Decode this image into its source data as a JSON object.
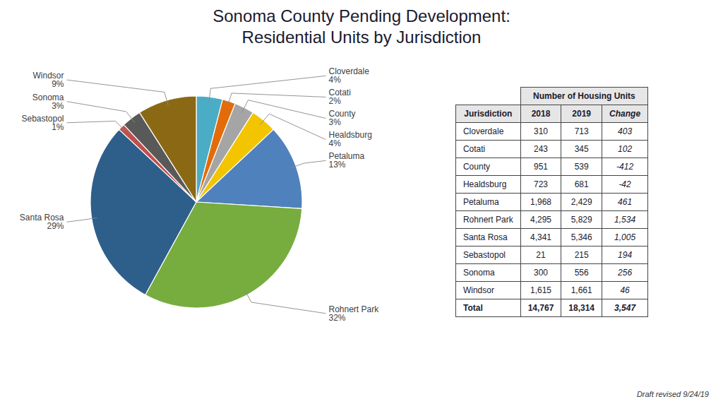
{
  "chart_data": [
    {
      "type": "pie",
      "title": "Sonoma County Pending Development:\nResidential Units by Jurisdiction",
      "categories": [
        "Cloverdale",
        "Cotati",
        "County",
        "Healdsburg",
        "Petaluma",
        "Rohnert Park",
        "Santa Rosa",
        "Sebastopol",
        "Sonoma",
        "Windsor"
      ],
      "values": [
        4,
        2,
        3,
        4,
        13,
        32,
        29,
        1,
        3,
        9
      ],
      "value_labels": [
        "4%",
        "2%",
        "3%",
        "4%",
        "13%",
        "32%",
        "29%",
        "1%",
        "3%",
        "9%"
      ],
      "colors": [
        "#4BACC6",
        "#E36C0A",
        "#A5A5A5",
        "#F2C500",
        "#4F81BD",
        "#77AC3F",
        "#2E5F8A",
        "#C0504D",
        "#595959",
        "#8B6914"
      ],
      "annotations": [
        "Draft revised 9/24/19"
      ]
    },
    {
      "type": "table",
      "title": "Number of Housing Units",
      "columns": [
        "Jurisdiction",
        "2018",
        "2019",
        "Change"
      ],
      "rows": [
        [
          "Cloverdale",
          "310",
          "713",
          "403"
        ],
        [
          "Cotati",
          "243",
          "345",
          "102"
        ],
        [
          "County",
          "951",
          "539",
          "-412"
        ],
        [
          "Healdsburg",
          "723",
          "681",
          "-42"
        ],
        [
          "Petaluma",
          "1,968",
          "2,429",
          "461"
        ],
        [
          "Rohnert Park",
          "4,295",
          "5,829",
          "1,534"
        ],
        [
          "Santa Rosa",
          "4,341",
          "5,346",
          "1,005"
        ],
        [
          "Sebastopol",
          "21",
          "215",
          "194"
        ],
        [
          "Sonoma",
          "300",
          "556",
          "256"
        ],
        [
          "Windsor",
          "1,615",
          "1,661",
          "46"
        ]
      ],
      "total": [
        "Total",
        "14,767",
        "18,314",
        "3,547"
      ]
    }
  ]
}
